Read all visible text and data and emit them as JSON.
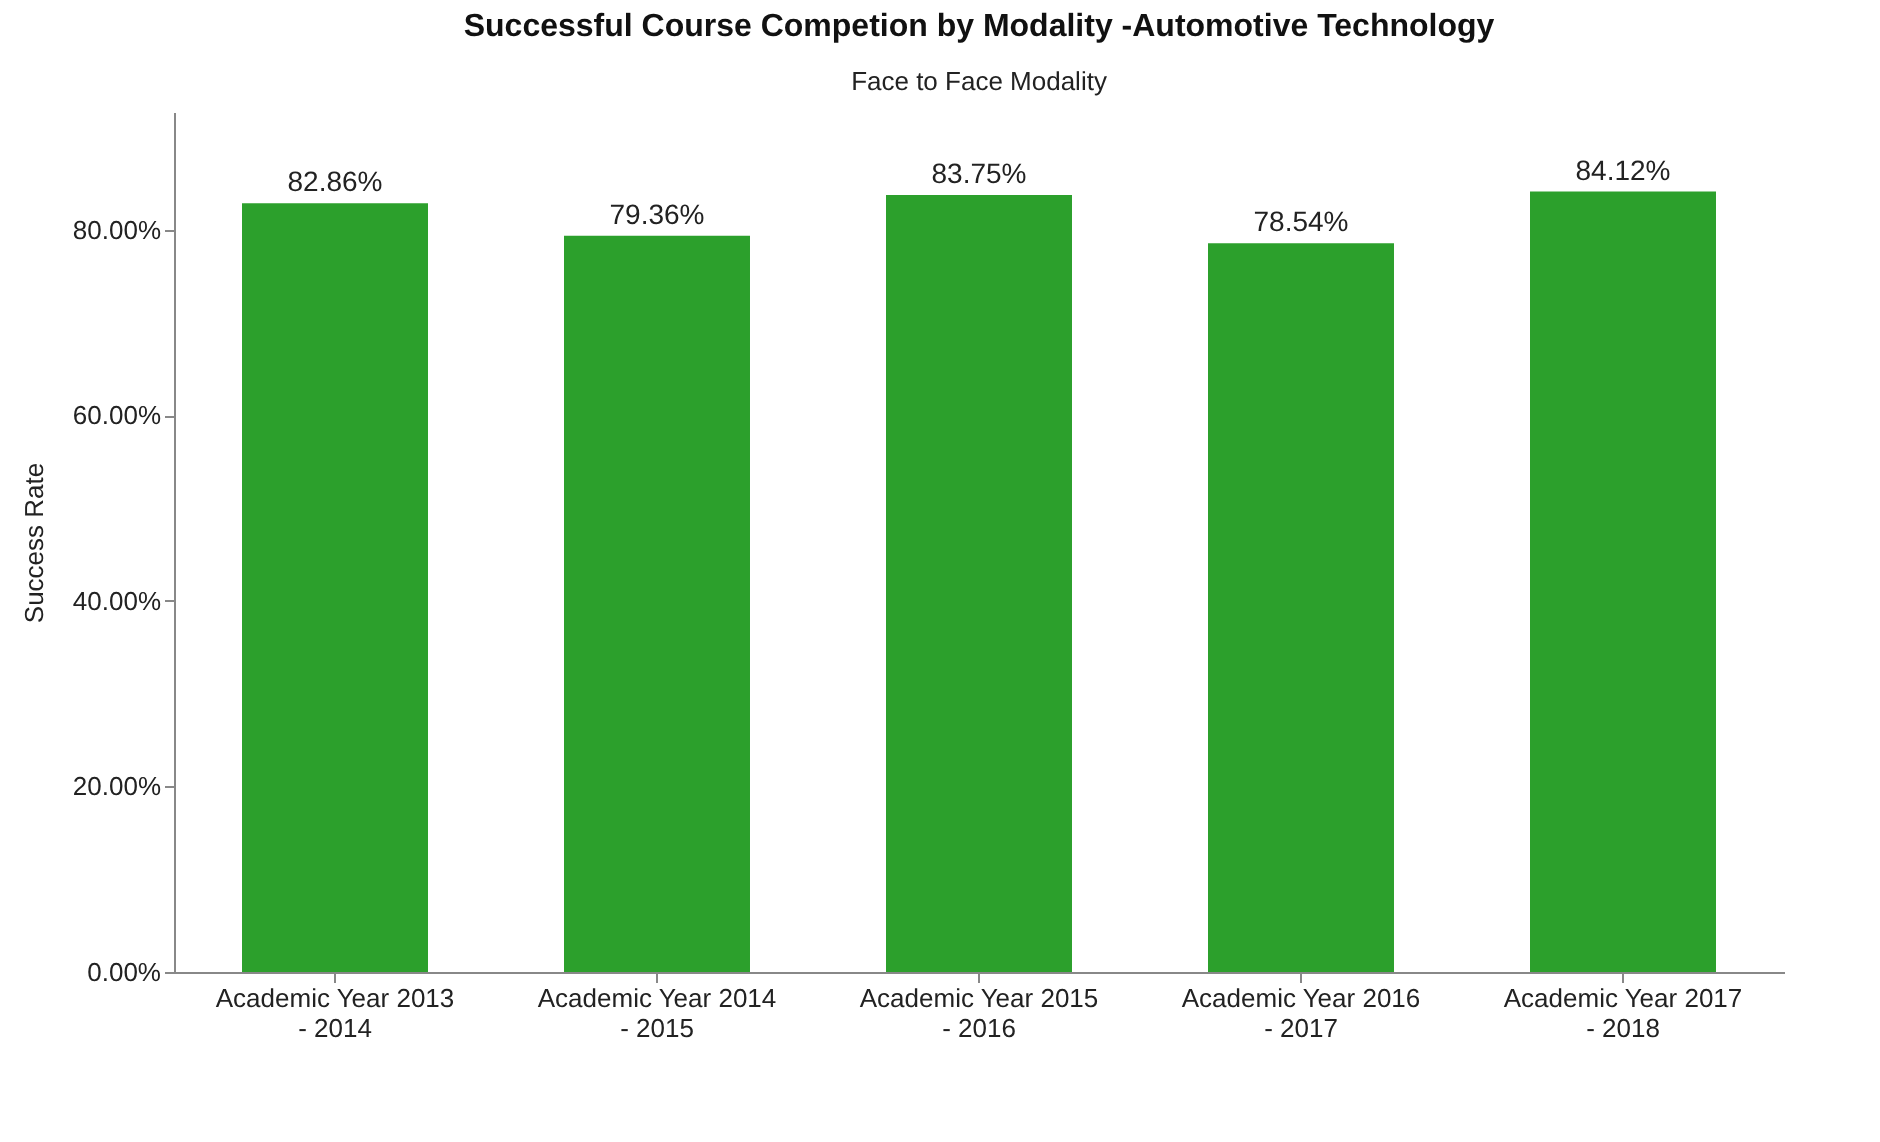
{
  "chart_data": {
    "type": "bar",
    "title": "Successful Course Competion by Modality -Automotive Technology",
    "subtitle": "Face to Face Modality",
    "ylabel": "Success Rate",
    "categories": [
      "Academic Year 2013 - 2014",
      "Academic Year 2014 - 2015",
      "Academic Year 2015 - 2016",
      "Academic Year 2016 - 2017",
      "Academic Year 2017 - 2018"
    ],
    "values": [
      82.86,
      79.36,
      83.75,
      78.54,
      84.12
    ],
    "value_labels": [
      "82.86%",
      "79.36%",
      "83.75%",
      "78.54%",
      "84.12%"
    ],
    "color": "#2ca02c",
    "ylim": [
      0,
      92.7
    ],
    "yticks": [
      {
        "value": 0,
        "label": "0.00%"
      },
      {
        "value": 20,
        "label": "20.00%"
      },
      {
        "value": 40,
        "label": "40.00%"
      },
      {
        "value": 60,
        "label": "60.00%"
      },
      {
        "value": 80,
        "label": "80.00%"
      }
    ],
    "grid": false
  }
}
